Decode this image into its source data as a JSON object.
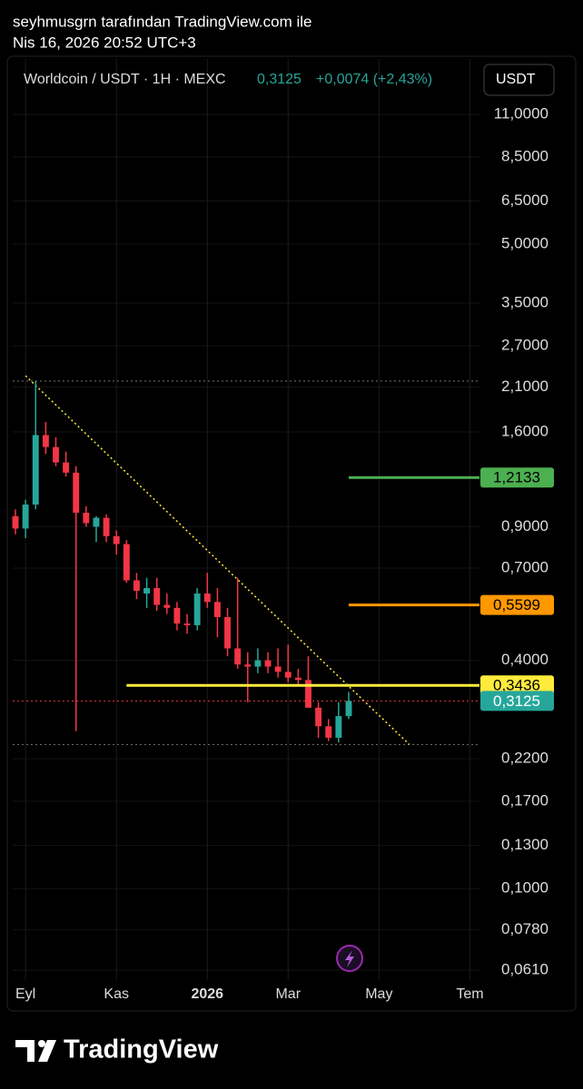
{
  "header": {
    "author": "seyhmusgrn tarafından TradingView.com ile",
    "timestamp": "Nis 16, 2026 20:52 UTC+3"
  },
  "chart_data": {
    "type": "candlestick",
    "legend": {
      "symbol": "Worldcoin / USDT · 1H · MEXC",
      "price": "0,3125",
      "change": "+0,0074 (+2,43%)"
    },
    "currency_button": "USDT",
    "log_scale": true,
    "grid": true,
    "up_color": "#26a69a",
    "down_color": "#f23645",
    "categories": [
      null,
      null,
      null,
      null,
      null,
      null,
      null,
      null,
      null,
      null,
      null,
      null,
      null,
      null,
      null,
      null,
      null,
      null,
      null,
      null,
      null,
      null,
      null,
      null,
      null,
      null,
      null,
      null,
      null,
      null,
      null,
      null,
      null,
      null
    ],
    "open": [
      0.96,
      0.89,
      1.03,
      1.57,
      1.46,
      1.33,
      1.25,
      0.98,
      0.9,
      0.95,
      0.85,
      0.81,
      0.65,
      0.6,
      0.62,
      0.56,
      0.55,
      0.5,
      0.495,
      0.6,
      0.57,
      0.52,
      0.43,
      0.39,
      0.385,
      0.4,
      0.385,
      0.373,
      0.36,
      0.355,
      0.3,
      0.268,
      0.25,
      0.285
    ],
    "high": [
      1.0,
      1.06,
      2.18,
      1.7,
      1.55,
      1.42,
      1.3,
      1.02,
      0.96,
      0.97,
      0.88,
      0.83,
      0.68,
      0.66,
      0.66,
      0.6,
      0.57,
      0.53,
      0.62,
      0.68,
      0.62,
      0.55,
      0.66,
      0.42,
      0.43,
      0.42,
      0.43,
      0.44,
      0.38,
      0.41,
      0.31,
      0.28,
      0.31,
      0.33
    ],
    "low": [
      0.86,
      0.84,
      1.0,
      1.4,
      1.3,
      1.22,
      0.26,
      0.9,
      0.82,
      0.82,
      0.76,
      0.64,
      0.58,
      0.55,
      0.54,
      0.53,
      0.48,
      0.47,
      0.48,
      0.55,
      0.46,
      0.41,
      0.38,
      0.31,
      0.37,
      0.37,
      0.36,
      0.35,
      0.345,
      0.3,
      0.25,
      0.245,
      0.243,
      0.28
    ],
    "close": [
      0.89,
      1.03,
      1.57,
      1.46,
      1.33,
      1.25,
      0.98,
      0.92,
      0.95,
      0.85,
      0.81,
      0.65,
      0.61,
      0.62,
      0.56,
      0.55,
      0.5,
      0.495,
      0.6,
      0.57,
      0.52,
      0.43,
      0.39,
      0.385,
      0.4,
      0.385,
      0.373,
      0.36,
      0.355,
      0.3,
      0.268,
      0.25,
      0.285,
      0.3125
    ],
    "xlim": [
      -0.27,
      45.95
    ],
    "xticks": [
      {
        "value": 1,
        "label": "Eyl"
      },
      {
        "value": 10,
        "label": "Kas"
      },
      {
        "value": 19,
        "label": "2026"
      },
      {
        "value": 27,
        "label": "Mar"
      },
      {
        "value": 36,
        "label": "May"
      },
      {
        "value": 45,
        "label": "Tem"
      }
    ],
    "ylim": [
      0.0574,
      15.4
    ],
    "yticks": [
      {
        "value": 11,
        "label": "11,0000"
      },
      {
        "value": 8.5,
        "label": "8,5000"
      },
      {
        "value": 6.5,
        "label": "6,5000"
      },
      {
        "value": 5,
        "label": "5,0000"
      },
      {
        "value": 3.5,
        "label": "3,5000"
      },
      {
        "value": 2.7,
        "label": "2,7000"
      },
      {
        "value": 2.1,
        "label": "2,1000"
      },
      {
        "value": 1.6,
        "label": "1,6000"
      },
      {
        "value": 0.9,
        "label": "0,9000"
      },
      {
        "value": 0.7,
        "label": "0,7000"
      },
      {
        "value": 0.4,
        "label": "0,4000"
      },
      {
        "value": 0.22,
        "label": "0,2200"
      },
      {
        "value": 0.17,
        "label": "0,1700"
      },
      {
        "value": 0.13,
        "label": "0,1300"
      },
      {
        "value": 0.1,
        "label": "0,1000"
      },
      {
        "value": 0.078,
        "label": "0,0780"
      },
      {
        "value": 0.061,
        "label": "0,0610"
      }
    ],
    "levels": [
      {
        "value": 1.2133,
        "label": "1,2133",
        "color": "#4caf50",
        "start": 33
      },
      {
        "value": 0.5599,
        "label": "0,5599",
        "color": "#ff9800",
        "start": 33
      },
      {
        "value": 0.3436,
        "label": "0,3436",
        "color": "#ffeb3b",
        "start": 11
      }
    ],
    "last_price": {
      "value": 0.3125,
      "label": "0,3125",
      "color": "#26a69a",
      "line_color": "#f23645"
    },
    "dotted_levels": [
      2.18,
      0.24
    ],
    "trendline": {
      "x": [
        1,
        39
      ],
      "y": [
        2.25,
        0.24
      ],
      "color": "#ffeb3b"
    }
  },
  "footer": {
    "brand": "TradingView"
  }
}
